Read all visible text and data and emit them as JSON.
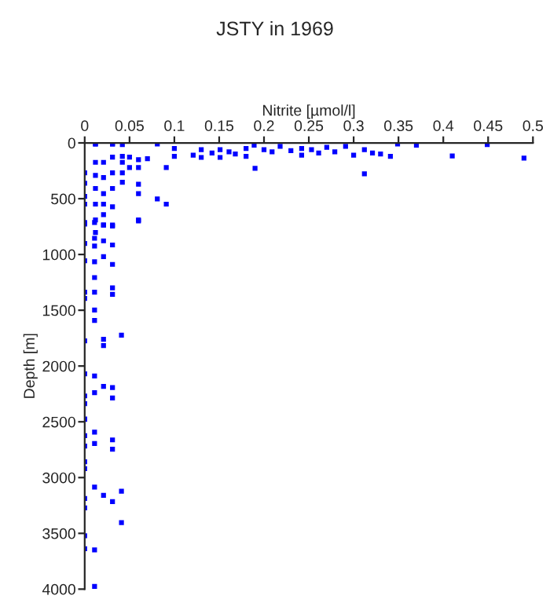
{
  "chart_data": {
    "type": "scatter",
    "title": "JSTY in 1969",
    "xlabel": "Nitrite [µmol/l]",
    "ylabel": "Depth [m]",
    "xlim": [
      0,
      0.5
    ],
    "xticks": [
      0,
      0.05,
      0.1,
      0.15,
      0.2,
      0.25,
      0.3,
      0.35,
      0.4,
      0.45,
      0.5
    ],
    "ylim": [
      4000,
      0
    ],
    "yticks": [
      0,
      500,
      1000,
      1500,
      2000,
      2500,
      3000,
      3500,
      4000
    ],
    "grid": false,
    "legend": false,
    "marker": "square",
    "series": [
      {
        "color": "#0000ff",
        "x": [
          0.012,
          0.031,
          0.042,
          0.081,
          0.1,
          0.1,
          0.121,
          0.13,
          0.13,
          0.142,
          0.151,
          0.151,
          0.161,
          0.168,
          0.18,
          0.18,
          0.189,
          0.2,
          0.209,
          0.218,
          0.23,
          0.242,
          0.242,
          0.253,
          0.261,
          0.27,
          0.279,
          0.291,
          0.3,
          0.312,
          0.321,
          0.33,
          0.341,
          0.349,
          0.37,
          0.449,
          0.41,
          0.49,
          0.312,
          0.19,
          0.091,
          0.07,
          0.06,
          0.06,
          0.06,
          0.06,
          0.06,
          0.081,
          0.091,
          0.042,
          0.042,
          0.042,
          0.042,
          0.05,
          0.05,
          0,
          0,
          0,
          0,
          0,
          0.012,
          0.012,
          0.012,
          0.012,
          0.012,
          0.012,
          0.012,
          0.021,
          0.021,
          0.021,
          0.021,
          0.021,
          0.021,
          0.031,
          0.031,
          0.031,
          0.031,
          0.031,
          0.031,
          0,
          0,
          0,
          0,
          0,
          0,
          0,
          0,
          0,
          0,
          0.011,
          0.011,
          0.011,
          0.011,
          0.011,
          0.011,
          0.011,
          0.011,
          0.011,
          0.011,
          0.021,
          0.021,
          0.021,
          0.021,
          0.021,
          0.021,
          0.031,
          0.031,
          0.031,
          0.031,
          0.031,
          0.031,
          0.031,
          0.06,
          0.041,
          0,
          0,
          0,
          0,
          0,
          0,
          0,
          0,
          0,
          0.011,
          0.011,
          0.011,
          0.011,
          0.011,
          0.031,
          0.031,
          0.031,
          0.021,
          0.041,
          0.041
        ],
        "values": [
          10,
          10,
          15,
          10,
          50,
          120,
          110,
          60,
          130,
          90,
          60,
          130,
          80,
          100,
          50,
          120,
          20,
          60,
          80,
          30,
          70,
          50,
          110,
          60,
          90,
          40,
          80,
          30,
          110,
          60,
          90,
          100,
          120,
          10,
          20,
          15,
          117,
          136,
          277,
          228,
          220,
          141,
          150,
          220,
          371,
          455,
          690,
          502,
          549,
          120,
          174,
          268,
          352,
          127,
          220,
          268,
          362,
          479,
          549,
          714,
          174,
          291,
          408,
          549,
          690,
          803,
          10,
          174,
          310,
          455,
          549,
          643,
          737,
          10,
          127,
          268,
          408,
          573,
          737,
          728,
          901,
          1056,
          1338,
          1394,
          1775,
          2070,
          2268,
          2338,
          2479,
          714,
          855,
          925,
          1066,
          1207,
          1338,
          1498,
          1592,
          2089,
          2239,
          737,
          878,
          1019,
          1761,
          1817,
          2183,
          746,
          915,
          1089,
          1300,
          1357,
          2193,
          2286,
          700,
          1723,
          2474,
          2624,
          2718,
          2859,
          2920,
          3188,
          3272,
          3521,
          3638,
          2592,
          2695,
          3085,
          3648,
          3976,
          2662,
          2746,
          3216,
          3159,
          3122,
          3404
        ]
      }
    ]
  }
}
